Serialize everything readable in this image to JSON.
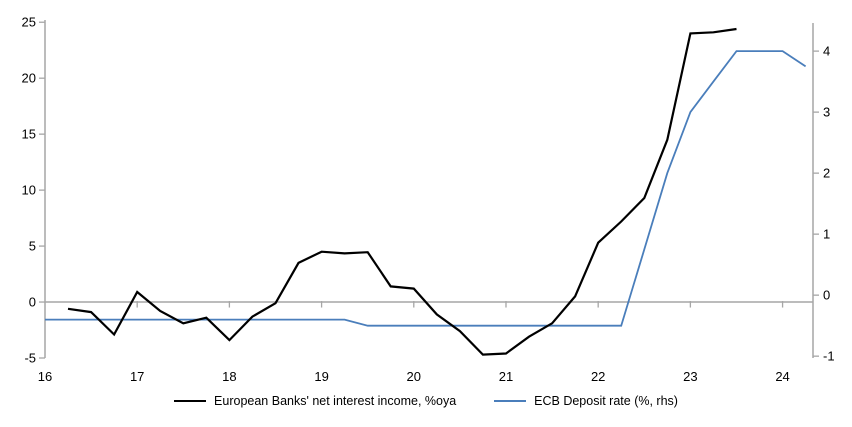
{
  "chart_data": {
    "type": "line",
    "title": "",
    "xlabel": "",
    "ylabel_left": "",
    "ylabel_right": "",
    "grid": "zero-line-only",
    "legend_position": "bottom-center",
    "x_axis": {
      "min": 16,
      "max": 24.33,
      "labels": [
        "16",
        "17",
        "18",
        "19",
        "20",
        "21",
        "22",
        "23",
        "24"
      ],
      "label_years": [
        16,
        17,
        18,
        19,
        20,
        21,
        22,
        23,
        24
      ],
      "tick_years_on_zero_line": [
        17,
        18,
        19,
        20,
        21,
        22,
        23,
        24
      ]
    },
    "left_axis": {
      "min": -5,
      "max": 25.2,
      "ticks": [
        25,
        20,
        15,
        10,
        5,
        0,
        -5
      ]
    },
    "right_axis": {
      "min": -1.03,
      "max": 4.51,
      "ticks": [
        4,
        3,
        2,
        1,
        0,
        -1
      ]
    },
    "series": [
      {
        "name": "ECB Deposit rate (%, rhs)",
        "axis": "right",
        "color": "#4a7ebb",
        "width": 1.8,
        "x": [
          16,
          16.25,
          16.5,
          16.75,
          17,
          17.25,
          17.5,
          17.75,
          18,
          18.25,
          18.5,
          18.75,
          19,
          19.25,
          19.5,
          19.75,
          20,
          20.25,
          20.5,
          20.75,
          21,
          21.25,
          21.5,
          21.75,
          22,
          22.25,
          22.5,
          22.75,
          23,
          23.25,
          23.5,
          23.75,
          24,
          24.25
        ],
        "values": [
          -0.4,
          -0.4,
          -0.4,
          -0.4,
          -0.4,
          -0.4,
          -0.4,
          -0.4,
          -0.4,
          -0.4,
          -0.4,
          -0.4,
          -0.4,
          -0.4,
          -0.5,
          -0.5,
          -0.5,
          -0.5,
          -0.5,
          -0.5,
          -0.5,
          -0.5,
          -0.5,
          -0.5,
          -0.5,
          -0.5,
          0.75,
          2.0,
          3.0,
          3.5,
          4.0,
          4.0,
          4.0,
          3.75
        ]
      },
      {
        "name": "European Banks' net interest income, %oya",
        "axis": "left",
        "color": "#000000",
        "width": 2.2,
        "x": [
          16.25,
          16.5,
          16.75,
          17,
          17.25,
          17.5,
          17.75,
          18,
          18.25,
          18.5,
          18.75,
          19,
          19.25,
          19.5,
          19.75,
          20,
          20.25,
          20.5,
          20.75,
          21,
          21.25,
          21.5,
          21.75,
          22,
          22.25,
          22.5,
          22.75,
          23,
          23.25,
          23.5
        ],
        "values": [
          -0.6,
          -0.9,
          -2.9,
          0.9,
          -0.8,
          -1.9,
          -1.4,
          -3.4,
          -1.3,
          -0.1,
          3.5,
          4.5,
          4.35,
          4.45,
          1.4,
          1.2,
          -1.1,
          -2.6,
          -4.7,
          -4.6,
          -3.1,
          -1.9,
          0.5,
          5.3,
          7.2,
          9.3,
          14.5,
          24.0,
          24.1,
          24.4
        ]
      }
    ],
    "colors": {
      "axis_gray": "#a6a6a6",
      "nii_line": "#000000",
      "ecb_line": "#4a7ebb",
      "text": "#000000"
    }
  },
  "legend": {
    "nii_label": "European Banks' net interest income, %oya",
    "ecb_label": "ECB Deposit rate (%, rhs)"
  }
}
